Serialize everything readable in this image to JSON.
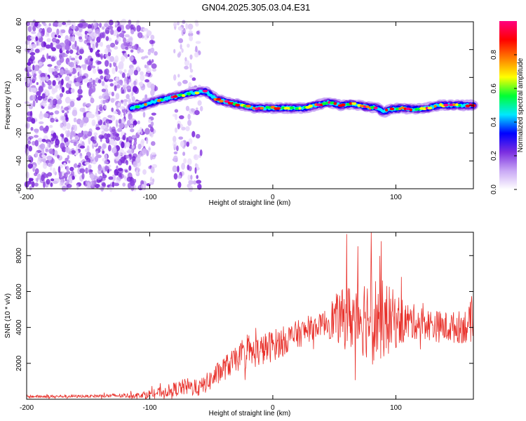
{
  "figure": {
    "title": "GN04.2025.305.03.04.E31"
  },
  "chart_data": [
    {
      "type": "heatmap",
      "name": "spectrogram",
      "xlabel": "Height of straight line (km)",
      "ylabel": "Frequency (Hz)",
      "xlim": [
        -200,
        163
      ],
      "ylim": [
        -60,
        60
      ],
      "xticks": [
        -200,
        -100,
        0,
        100
      ],
      "yticks": [
        -60,
        -40,
        -20,
        0,
        20,
        40,
        60
      ],
      "ridge": [
        [
          -115,
          -2
        ],
        [
          -105,
          0
        ],
        [
          -95,
          3
        ],
        [
          -85,
          5
        ],
        [
          -75,
          7
        ],
        [
          -65,
          9
        ],
        [
          -55,
          10
        ],
        [
          -45,
          4
        ],
        [
          -35,
          2
        ],
        [
          -25,
          0
        ],
        [
          -15,
          -2
        ],
        [
          -5,
          -2
        ],
        [
          5,
          -2
        ],
        [
          15,
          -2
        ],
        [
          25,
          -2
        ],
        [
          35,
          0
        ],
        [
          45,
          2
        ],
        [
          55,
          0
        ],
        [
          65,
          1
        ],
        [
          75,
          -1
        ],
        [
          85,
          -2
        ],
        [
          90,
          -5
        ],
        [
          95,
          -3
        ],
        [
          105,
          -2
        ],
        [
          115,
          -3
        ],
        [
          125,
          -2
        ],
        [
          135,
          0
        ],
        [
          145,
          0
        ],
        [
          155,
          0
        ],
        [
          163,
          0
        ]
      ],
      "colorbar": {
        "label": "Normalized spectral amplitude",
        "range": [
          0.0,
          1.0
        ],
        "ticks": [
          "0.0",
          "0.2",
          "0.4",
          "0.6",
          "0.8"
        ],
        "colors": [
          "#ffffff",
          "#c9a8f5",
          "#7b2ee0",
          "#0000ff",
          "#00e8ff",
          "#00ff33",
          "#ffff00",
          "#ff7f00",
          "#ff0000",
          "#ff0080"
        ]
      }
    },
    {
      "type": "line",
      "name": "snr",
      "xlabel": "Height of straight line (km)",
      "ylabel": "SNR (10 * v/v)",
      "xlim": [
        -200,
        163
      ],
      "ylim": [
        0,
        9300
      ],
      "xticks": [
        -200,
        -100,
        0,
        100
      ],
      "yticks": [
        2000,
        4000,
        6000,
        8000
      ],
      "color": "#e8302a",
      "envelope": {
        "x": [
          -200,
          -150,
          -110,
          -90,
          -70,
          -60,
          -50,
          -40,
          -30,
          -20,
          -10,
          0,
          10,
          20,
          30,
          40,
          50,
          60,
          70,
          80,
          90,
          100,
          110,
          120,
          130,
          140,
          150,
          163
        ],
        "mean": [
          150,
          170,
          220,
          400,
          700,
          600,
          1100,
          1700,
          2200,
          2500,
          2700,
          3000,
          3300,
          3600,
          3900,
          4200,
          4500,
          4500,
          4700,
          4600,
          4400,
          4400,
          4300,
          4300,
          4100,
          4000,
          4000,
          4200
        ],
        "amp": [
          80,
          80,
          150,
          300,
          500,
          450,
          600,
          700,
          700,
          800,
          900,
          900,
          800,
          800,
          700,
          600,
          1300,
          1800,
          2200,
          2500,
          2200,
          1600,
          1100,
          900,
          900,
          900,
          900,
          1100
        ]
      },
      "peaks": [
        {
          "x": 60,
          "y": 9200
        },
        {
          "x": 80,
          "y": 9300
        },
        {
          "x": 88,
          "y": 8800
        }
      ]
    }
  ]
}
